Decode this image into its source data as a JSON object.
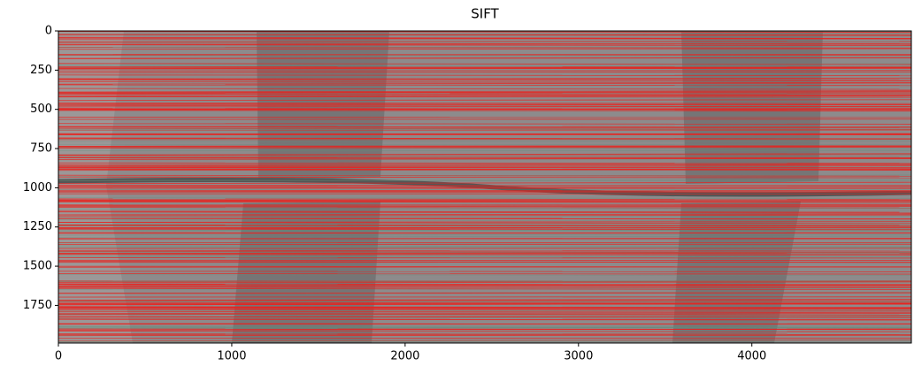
{
  "chart_data": {
    "type": "image",
    "title": "SIFT",
    "xlim": [
      0,
      4920
    ],
    "ylim": [
      1990,
      0
    ],
    "xticks": [
      0,
      1000,
      2000,
      3000,
      4000
    ],
    "yticks": [
      0,
      250,
      500,
      750,
      1000,
      1250,
      1500,
      1750
    ]
  }
}
